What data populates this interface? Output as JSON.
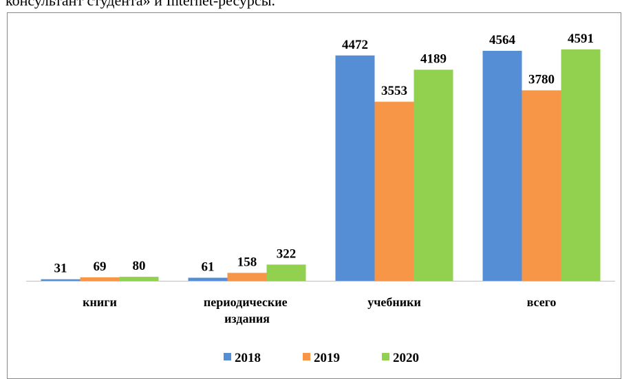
{
  "caption": "консультант студента» и Internet-ресурсы.",
  "chart_data": {
    "type": "bar",
    "categories": [
      "книги",
      "периодические издания",
      "учебники",
      "всего"
    ],
    "series": [
      {
        "name": "2018",
        "color": "#558ed5",
        "values": [
          31,
          61,
          4472,
          4564
        ]
      },
      {
        "name": "2019",
        "color": "#f79646",
        "values": [
          69,
          158,
          3553,
          3780
        ]
      },
      {
        "name": "2020",
        "color": "#92d050",
        "values": [
          80,
          322,
          4189,
          4591
        ]
      }
    ],
    "ylim": [
      0,
      5000
    ],
    "grid": false,
    "legend": "bottom"
  }
}
